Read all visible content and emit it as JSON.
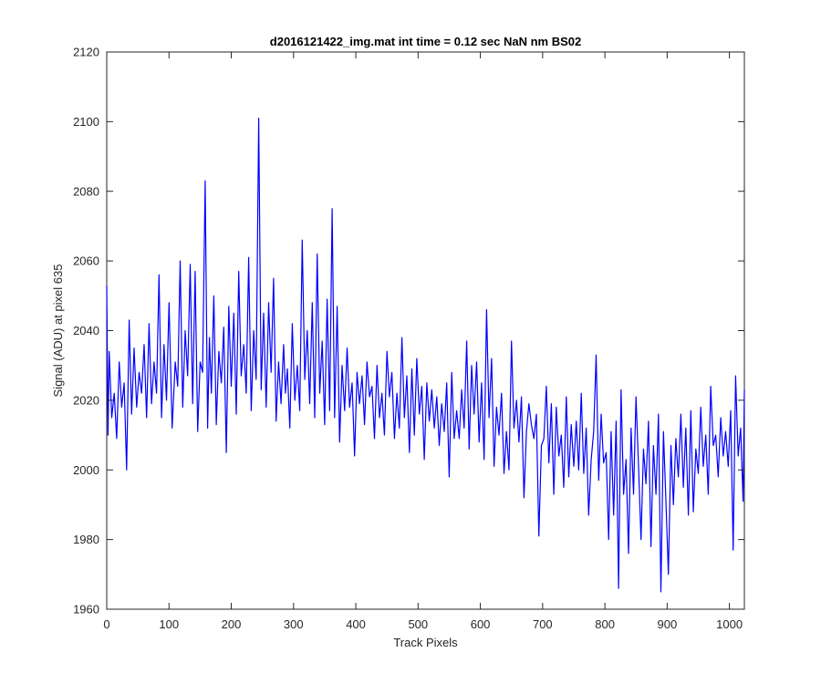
{
  "chart_data": {
    "type": "line",
    "title": "d2016121422_img.mat int time = 0.12 sec  NaN nm BS02",
    "xlabel": "Track Pixels",
    "ylabel": "Signal (ADU) at pixel 635",
    "xlim": [
      0,
      1024
    ],
    "ylim": [
      1960,
      2120
    ],
    "xticks": [
      0,
      100,
      200,
      300,
      400,
      500,
      600,
      700,
      800,
      900,
      1000
    ],
    "yticks": [
      1960,
      1980,
      2000,
      2020,
      2040,
      2060,
      2080,
      2100,
      2120
    ],
    "grid": false,
    "legend": "none",
    "series": [
      {
        "color": "#0000ff",
        "x": [
          0,
          2,
          4,
          8,
          12,
          16,
          20,
          24,
          28,
          32,
          36,
          40,
          44,
          48,
          52,
          56,
          60,
          64,
          68,
          72,
          76,
          80,
          84,
          88,
          92,
          96,
          100,
          105,
          110,
          114,
          118,
          122,
          126,
          130,
          134,
          138,
          142,
          146,
          150,
          154,
          158,
          162,
          165,
          168,
          172,
          176,
          180,
          184,
          188,
          192,
          196,
          200,
          204,
          208,
          212,
          216,
          220,
          224,
          228,
          232,
          236,
          240,
          244,
          248,
          252,
          256,
          260,
          264,
          268,
          272,
          276,
          280,
          284,
          287,
          290,
          294,
          298,
          302,
          306,
          310,
          314,
          318,
          322,
          326,
          330,
          334,
          338,
          342,
          346,
          350,
          354,
          358,
          362,
          366,
          370,
          374,
          378,
          382,
          386,
          390,
          394,
          398,
          402,
          406,
          410,
          414,
          418,
          422,
          426,
          430,
          434,
          438,
          442,
          446,
          450,
          454,
          458,
          462,
          466,
          470,
          474,
          478,
          482,
          486,
          490,
          494,
          498,
          502,
          506,
          510,
          514,
          518,
          522,
          526,
          530,
          534,
          538,
          542,
          546,
          550,
          554,
          558,
          562,
          566,
          570,
          574,
          578,
          582,
          586,
          590,
          594,
          598,
          602,
          606,
          610,
          614,
          618,
          622,
          626,
          630,
          634,
          638,
          642,
          646,
          650,
          654,
          658,
          662,
          666,
          670,
          674,
          678,
          682,
          686,
          690,
          694,
          698,
          702,
          706,
          710,
          714,
          718,
          722,
          726,
          730,
          734,
          738,
          742,
          746,
          750,
          754,
          758,
          762,
          766,
          770,
          774,
          778,
          782,
          786,
          790,
          794,
          798,
          802,
          806,
          810,
          814,
          818,
          822,
          826,
          830,
          834,
          838,
          842,
          846,
          850,
          854,
          858,
          862,
          866,
          870,
          874,
          878,
          882,
          886,
          890,
          894,
          898,
          902,
          906,
          910,
          914,
          918,
          922,
          926,
          930,
          934,
          938,
          942,
          946,
          950,
          954,
          958,
          962,
          966,
          970,
          974,
          978,
          982,
          986,
          990,
          994,
          998,
          1002,
          1006,
          1010,
          1014,
          1018,
          1022,
          1024
        ],
        "y": [
          2053,
          2010,
          2034,
          2015,
          2022,
          2009,
          2031,
          2018,
          2025,
          2000,
          2043,
          2016,
          2035,
          2018,
          2028,
          2022,
          2036,
          2015,
          2042,
          2019,
          2031,
          2022,
          2056,
          2015,
          2036,
          2020,
          2048,
          2012,
          2031,
          2024,
          2060,
          2018,
          2040,
          2027,
          2059,
          2019,
          2057,
          2011,
          2031,
          2028,
          2083,
          2012,
          2038,
          2022,
          2050,
          2013,
          2034,
          2025,
          2041,
          2005,
          2047,
          2024,
          2045,
          2016,
          2057,
          2027,
          2036,
          2022,
          2061,
          2017,
          2040,
          2026,
          2101,
          2023,
          2045,
          2018,
          2048,
          2028,
          2055,
          2014,
          2031,
          2019,
          2036,
          2022,
          2029,
          2012,
          2042,
          2020,
          2030,
          2017,
          2066,
          2026,
          2040,
          2019,
          2048,
          2015,
          2062,
          2022,
          2037,
          2013,
          2049,
          2017,
          2075,
          2015,
          2047,
          2008,
          2030,
          2017,
          2035,
          2018,
          2025,
          2004,
          2028,
          2019,
          2027,
          2013,
          2031,
          2021,
          2024,
          2009,
          2030,
          2015,
          2022,
          2010,
          2034,
          2021,
          2028,
          2009,
          2022,
          2012,
          2038,
          2015,
          2027,
          2005,
          2029,
          2010,
          2032,
          2016,
          2024,
          2003,
          2025,
          2014,
          2023,
          2012,
          2021,
          2007,
          2019,
          2011,
          2025,
          1998,
          2028,
          2009,
          2017,
          2009,
          2023,
          2012,
          2037,
          2006,
          2030,
          2016,
          2031,
          2008,
          2025,
          2003,
          2046,
          2015,
          2032,
          2001,
          2018,
          2010,
          2022,
          1999,
          2011,
          2000,
          2037,
          2012,
          2020,
          2008,
          2021,
          1992,
          2011,
          2019,
          2013,
          2009,
          2016,
          1981,
          2007,
          2009,
          2024,
          2002,
          2019,
          1993,
          2018,
          2004,
          2010,
          1995,
          2021,
          1998,
          2013,
          2001,
          2014,
          2000,
          2022,
          1999,
          2012,
          1987,
          2003,
          2011,
          2033,
          1997,
          2016,
          2002,
          2005,
          1980,
          2011,
          1987,
          2014,
          1966,
          2023,
          1993,
          2003,
          1976,
          2012,
          1993,
          2021,
          2001,
          1980,
          2006,
          1996,
          2014,
          1978,
          2007,
          1993,
          2016,
          1965,
          2011,
          1991,
          1970,
          2007,
          1990,
          2009,
          1998,
          2016,
          1995,
          2012,
          1987,
          2017,
          1988,
          2006,
          1999,
          2018,
          2001,
          2010,
          1993,
          2024,
          2007,
          2010,
          1998,
          2015,
          2004,
          2011,
          2001,
          2017,
          1977,
          2027,
          2004,
          2012,
          1991,
          2023
        ]
      }
    ]
  }
}
